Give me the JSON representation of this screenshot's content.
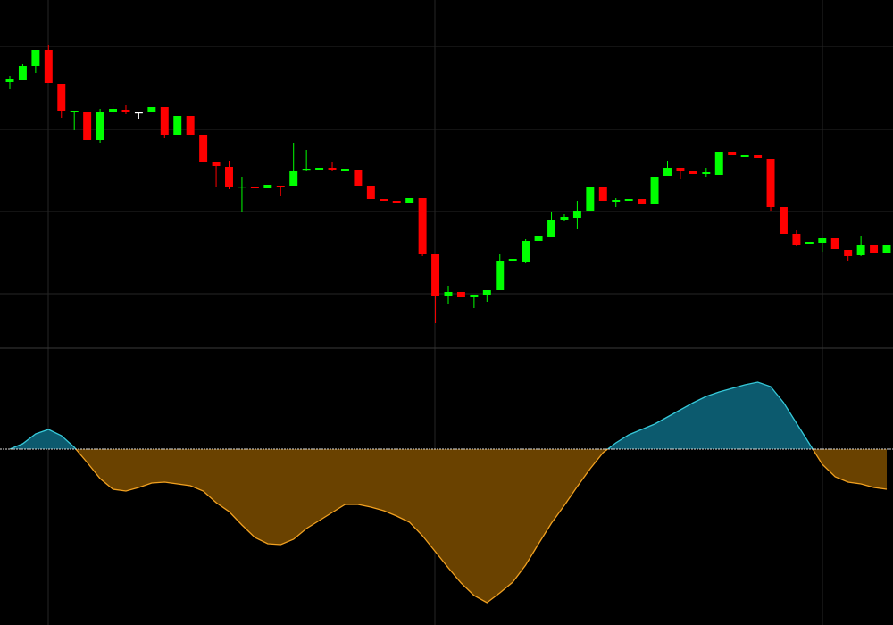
{
  "chart_data": [
    {
      "type": "candlestick",
      "open": [
        298,
        300,
        316,
        334,
        296,
        265,
        265,
        233,
        265,
        267,
        264,
        264,
        270,
        239,
        260,
        239,
        208,
        203,
        180,
        181,
        179,
        182,
        182,
        200,
        200,
        202,
        199,
        200,
        182,
        167,
        165,
        163,
        168,
        106,
        59,
        63,
        57,
        60,
        65,
        98,
        97,
        120,
        125,
        144,
        146,
        154,
        180,
        164,
        165,
        167,
        161,
        193,
        202,
        198,
        195,
        194,
        220,
        214,
        216,
        212,
        158,
        128,
        117,
        118,
        123,
        110,
        104,
        116,
        107
      ],
      "high": [
        305,
        318,
        334,
        340,
        296,
        266,
        265,
        268,
        274,
        272,
        264,
        270,
        270,
        260,
        260,
        239,
        208,
        210,
        192,
        181,
        183,
        182,
        230,
        222,
        202,
        208,
        201,
        200,
        182,
        167,
        165,
        168,
        168,
        106,
        70,
        63,
        60,
        65,
        105,
        100,
        122,
        126,
        152,
        150,
        165,
        180,
        180,
        168,
        167,
        167,
        192,
        210,
        202,
        198,
        202,
        220,
        220,
        216,
        216,
        212,
        158,
        132,
        119,
        123,
        123,
        110,
        126,
        116,
        116
      ],
      "low": [
        290,
        300,
        308,
        297,
        258,
        244,
        233,
        230,
        262,
        262,
        257,
        264,
        235,
        239,
        239,
        208,
        180,
        178,
        152,
        179,
        179,
        170,
        182,
        198,
        200,
        198,
        199,
        182,
        167,
        165,
        163,
        163,
        103,
        28,
        50,
        57,
        45,
        52,
        65,
        98,
        95,
        120,
        125,
        142,
        134,
        154,
        165,
        158,
        165,
        161,
        161,
        193,
        190,
        195,
        192,
        194,
        216,
        214,
        213,
        154,
        128,
        114,
        117,
        108,
        111,
        98,
        103,
        107,
        107
      ],
      "close": [
        301,
        316,
        334,
        297,
        266,
        266,
        233,
        265,
        268,
        264,
        264,
        270,
        239,
        260,
        239,
        208,
        204,
        180,
        181,
        179,
        183,
        181,
        199,
        201,
        202,
        200,
        201,
        182,
        167,
        165,
        163,
        168,
        105,
        58,
        63,
        57,
        60,
        65,
        98,
        100,
        120,
        126,
        144,
        147,
        154,
        180,
        165,
        166,
        167,
        161,
        192,
        202,
        199,
        195,
        197,
        220,
        216,
        216,
        213,
        158,
        128,
        116,
        119,
        123,
        111,
        103,
        116,
        107,
        116
      ],
      "ylim": [
        0,
        390
      ],
      "yticks": [
        61,
        153,
        245,
        338
      ],
      "grid": true,
      "up_color": "#00ff00",
      "down_color": "#ff0000",
      "flat_color": "#ffffff"
    },
    {
      "type": "area",
      "values": [
        0,
        6,
        17,
        22,
        15,
        2,
        -15,
        -33,
        -45,
        -47,
        -43,
        -38,
        -37,
        -39,
        -41,
        -47,
        -60,
        -70,
        -85,
        -99,
        -106,
        -107,
        -101,
        -89,
        -80,
        -71,
        -62,
        -62,
        -65,
        -69,
        -75,
        -82,
        -97,
        -115,
        -133,
        -150,
        -164,
        -172,
        -161,
        -149,
        -130,
        -106,
        -83,
        -63,
        -42,
        -22,
        -4,
        7,
        16,
        22,
        28,
        36,
        44,
        52,
        59,
        64,
        68,
        72,
        75,
        70,
        52,
        29,
        6,
        -17,
        -31,
        -37,
        -39,
        -43,
        -45
      ],
      "ylim": [
        -197,
        113
      ],
      "baseline": 0,
      "positive_fill": "#0c5a6e",
      "positive_line": "#36c8d8",
      "negative_fill": "#6a4200",
      "negative_line": "#f0a020"
    }
  ]
}
